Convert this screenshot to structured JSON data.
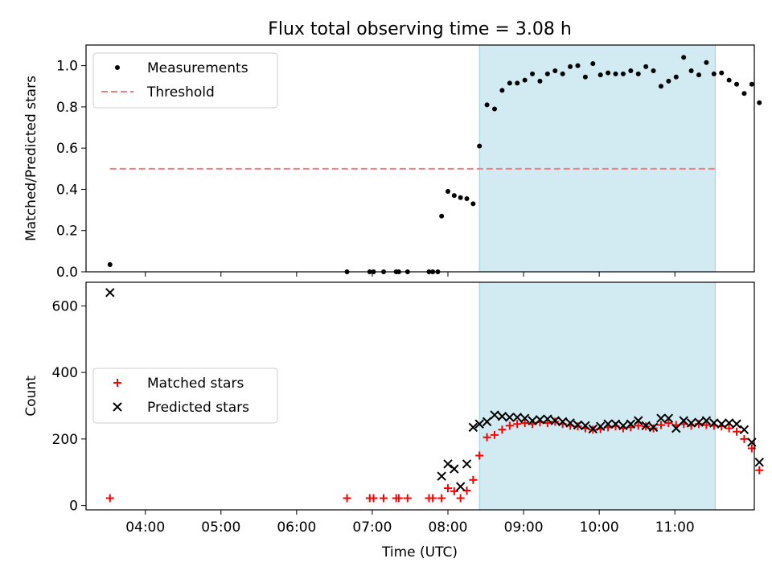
{
  "chart_data": {
    "title": "Flux total observing time = 3.08 h",
    "xlabel": "Time (UTC)",
    "x_ticks": [
      "04:00",
      "05:00",
      "06:00",
      "07:00",
      "08:00",
      "09:00",
      "10:00",
      "11:00"
    ],
    "xlim": [
      "03:13",
      "12:03"
    ],
    "highlight_span": {
      "start": "08:25",
      "end": "11:32",
      "color": "#add8e6"
    },
    "panels": [
      {
        "type": "scatter",
        "ylabel": "Matched/Predicted stars",
        "ylim": [
          0,
          1.1
        ],
        "y_ticks": [
          "0.0",
          "0.2",
          "0.4",
          "0.6",
          "0.8",
          "1.0"
        ],
        "y_tick_values": [
          0,
          0.2,
          0.4,
          0.6,
          0.8,
          1.0
        ],
        "legend_position": "upper-left",
        "threshold": {
          "name": "Threshold",
          "value": 0.5,
          "x_start": "03:32",
          "x_end": "11:32",
          "color": "#f08080",
          "style": "dashed"
        },
        "series": [
          {
            "name": "Measurements",
            "color": "#000000",
            "marker": "dot",
            "points": [
              [
                "03:32",
                0.035
              ],
              [
                "06:40",
                0.0
              ],
              [
                "06:58",
                0.0
              ],
              [
                "07:01",
                0.0
              ],
              [
                "07:09",
                0.0
              ],
              [
                "07:19",
                0.0
              ],
              [
                "07:21",
                0.0
              ],
              [
                "07:28",
                0.0
              ],
              [
                "07:45",
                0.0
              ],
              [
                "07:48",
                0.0
              ],
              [
                "07:52",
                0.0
              ],
              [
                "07:55",
                0.27
              ],
              [
                "08:00",
                0.39
              ],
              [
                "08:05",
                0.37
              ],
              [
                "08:10",
                0.36
              ],
              [
                "08:15",
                0.355
              ],
              [
                "08:20",
                0.33
              ],
              [
                "08:25",
                0.61
              ],
              [
                "08:31",
                0.81
              ],
              [
                "08:37",
                0.79
              ],
              [
                "08:43",
                0.88
              ],
              [
                "08:49",
                0.915
              ],
              [
                "08:55",
                0.915
              ],
              [
                "09:01",
                0.93
              ],
              [
                "09:07",
                0.96
              ],
              [
                "09:13",
                0.925
              ],
              [
                "09:19",
                0.96
              ],
              [
                "09:25",
                0.975
              ],
              [
                "09:31",
                0.96
              ],
              [
                "09:37",
                0.995
              ],
              [
                "09:43",
                1.0
              ],
              [
                "09:49",
                0.945
              ],
              [
                "09:55",
                1.01
              ],
              [
                "10:01",
                0.955
              ],
              [
                "10:07",
                0.965
              ],
              [
                "10:13",
                0.96
              ],
              [
                "10:19",
                0.96
              ],
              [
                "10:25",
                0.975
              ],
              [
                "10:31",
                0.96
              ],
              [
                "10:37",
                0.995
              ],
              [
                "10:43",
                0.975
              ],
              [
                "10:49",
                0.9
              ],
              [
                "10:55",
                0.925
              ],
              [
                "11:01",
                0.945
              ],
              [
                "11:07",
                1.04
              ],
              [
                "11:13",
                0.975
              ],
              [
                "11:19",
                0.955
              ],
              [
                "11:25",
                1.015
              ],
              [
                "11:31",
                0.96
              ],
              [
                "11:37",
                0.965
              ],
              [
                "11:43",
                0.93
              ],
              [
                "11:49",
                0.91
              ],
              [
                "11:55",
                0.865
              ],
              [
                "12:01",
                0.91
              ],
              [
                "12:07",
                0.82
              ]
            ]
          }
        ]
      },
      {
        "type": "scatter",
        "ylabel": "Count",
        "ylim": [
          -13,
          671
        ],
        "y_ticks": [
          "0",
          "200",
          "400",
          "600"
        ],
        "y_tick_values": [
          0,
          200,
          400,
          600
        ],
        "legend_position": "center-left",
        "series": [
          {
            "name": "Matched stars",
            "color": "#ff0000",
            "marker": "plus",
            "points": [
              [
                "03:32",
                22
              ],
              [
                "06:40",
                22
              ],
              [
                "06:58",
                22
              ],
              [
                "07:01",
                22
              ],
              [
                "07:09",
                22
              ],
              [
                "07:19",
                22
              ],
              [
                "07:21",
                22
              ],
              [
                "07:28",
                22
              ],
              [
                "07:45",
                22
              ],
              [
                "07:48",
                22
              ],
              [
                "07:55",
                22
              ],
              [
                "08:00",
                52
              ],
              [
                "08:05",
                43
              ],
              [
                "08:10",
                22
              ],
              [
                "08:15",
                45
              ],
              [
                "08:20",
                77
              ],
              [
                "08:25",
                150
              ],
              [
                "08:31",
                205
              ],
              [
                "08:37",
                212
              ],
              [
                "08:43",
                228
              ],
              [
                "08:49",
                240
              ],
              [
                "08:55",
                245
              ],
              [
                "09:01",
                248
              ],
              [
                "09:07",
                245
              ],
              [
                "09:13",
                250
              ],
              [
                "09:19",
                248
              ],
              [
                "09:25",
                252
              ],
              [
                "09:31",
                245
              ],
              [
                "09:37",
                240
              ],
              [
                "09:43",
                238
              ],
              [
                "09:49",
                232
              ],
              [
                "09:55",
                228
              ],
              [
                "10:01",
                230
              ],
              [
                "10:07",
                235
              ],
              [
                "10:13",
                238
              ],
              [
                "10:19",
                232
              ],
              [
                "10:25",
                235
              ],
              [
                "10:31",
                240
              ],
              [
                "10:37",
                238
              ],
              [
                "10:43",
                232
              ],
              [
                "10:49",
                242
              ],
              [
                "10:55",
                248
              ],
              [
                "11:01",
                242
              ],
              [
                "11:07",
                245
              ],
              [
                "11:13",
                240
              ],
              [
                "11:19",
                245
              ],
              [
                "11:25",
                242
              ],
              [
                "11:31",
                240
              ],
              [
                "11:37",
                238
              ],
              [
                "11:43",
                232
              ],
              [
                "11:49",
                222
              ],
              [
                "11:55",
                200
              ],
              [
                "12:01",
                172
              ],
              [
                "12:07",
                106
              ]
            ]
          },
          {
            "name": "Predicted stars",
            "color": "#000000",
            "marker": "x",
            "points": [
              [
                "03:32",
                640
              ],
              [
                "07:55",
                88
              ],
              [
                "08:00",
                125
              ],
              [
                "08:05",
                110
              ],
              [
                "08:10",
                57
              ],
              [
                "08:15",
                125
              ],
              [
                "08:20",
                235
              ],
              [
                "08:25",
                245
              ],
              [
                "08:31",
                252
              ],
              [
                "08:37",
                272
              ],
              [
                "08:43",
                268
              ],
              [
                "08:49",
                265
              ],
              [
                "08:55",
                265
              ],
              [
                "09:01",
                262
              ],
              [
                "09:07",
                255
              ],
              [
                "09:13",
                258
              ],
              [
                "09:19",
                260
              ],
              [
                "09:25",
                255
              ],
              [
                "09:31",
                252
              ],
              [
                "09:37",
                248
              ],
              [
                "09:43",
                242
              ],
              [
                "09:49",
                240
              ],
              [
                "09:55",
                230
              ],
              [
                "10:01",
                238
              ],
              [
                "10:07",
                245
              ],
              [
                "10:13",
                245
              ],
              [
                "10:19",
                240
              ],
              [
                "10:25",
                245
              ],
              [
                "10:31",
                255
              ],
              [
                "10:37",
                240
              ],
              [
                "10:43",
                235
              ],
              [
                "10:49",
                262
              ],
              [
                "10:55",
                262
              ],
              [
                "11:01",
                232
              ],
              [
                "11:07",
                255
              ],
              [
                "11:13",
                248
              ],
              [
                "11:19",
                250
              ],
              [
                "11:25",
                255
              ],
              [
                "11:31",
                248
              ],
              [
                "11:37",
                245
              ],
              [
                "11:43",
                248
              ],
              [
                "11:49",
                245
              ],
              [
                "11:55",
                228
              ],
              [
                "12:01",
                190
              ],
              [
                "12:07",
                130
              ]
            ]
          }
        ]
      }
    ]
  }
}
